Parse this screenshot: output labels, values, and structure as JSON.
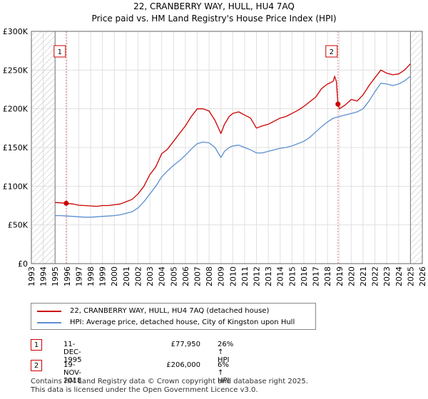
{
  "title_line1": "22, CRANBERRY WAY, HULL, HU4 7AQ",
  "title_line2": "Price paid vs. HM Land Registry's House Price Index (HPI)",
  "colors": {
    "property": "#cc0000",
    "hpi": "#5b8fd0",
    "marker": "#cc0000",
    "shade": "#e8e8e8",
    "grid": "#e0e0e0"
  },
  "chart_data": {
    "type": "line",
    "title": "Price paid vs. HM Land Registry's House Price Index (HPI)",
    "xlabel": "",
    "ylabel": "",
    "xlim": [
      1993,
      2026
    ],
    "ylim": [
      0,
      300000
    ],
    "x_ticks": [
      1993,
      1994,
      1995,
      1996,
      1997,
      1998,
      1999,
      2000,
      2001,
      2002,
      2003,
      2004,
      2005,
      2006,
      2007,
      2008,
      2009,
      2010,
      2011,
      2012,
      2013,
      2014,
      2015,
      2016,
      2017,
      2018,
      2019,
      2020,
      2021,
      2022,
      2023,
      2024,
      2025,
      2026
    ],
    "y_ticks": [
      0,
      50000,
      100000,
      150000,
      200000,
      250000,
      300000
    ],
    "y_tick_labels": [
      "£0",
      "£50K",
      "£100K",
      "£150K",
      "£200K",
      "£250K",
      "£300K"
    ],
    "shaded_before": 1995.0,
    "shaded_after": 2025.0,
    "series": [
      {
        "name": "22, CRANBERRY WAY, HULL, HU4 7AQ (detached house)",
        "color": "#cc0000",
        "x": [
          1995.0,
          1995.5,
          1995.94,
          1996.5,
          1997.0,
          1997.5,
          1998.0,
          1998.5,
          1999.0,
          1999.5,
          2000.0,
          2000.5,
          2001.0,
          2001.5,
          2002.0,
          2002.5,
          2003.0,
          2003.5,
          2004.0,
          2004.5,
          2005.0,
          2005.5,
          2006.0,
          2006.5,
          2007.0,
          2007.5,
          2008.0,
          2008.5,
          2009.0,
          2009.3,
          2009.7,
          2010.0,
          2010.5,
          2011.0,
          2011.5,
          2012.0,
          2012.5,
          2013.0,
          2013.5,
          2014.0,
          2014.5,
          2015.0,
          2015.5,
          2016.0,
          2016.5,
          2017.0,
          2017.5,
          2018.0,
          2018.3,
          2018.5,
          2018.6,
          2018.75,
          2018.88,
          2019.0,
          2019.5,
          2020.0,
          2020.5,
          2021.0,
          2021.5,
          2022.0,
          2022.5,
          2023.0,
          2023.5,
          2024.0,
          2024.5,
          2025.0
        ],
        "y": [
          79000,
          78500,
          77950,
          77000,
          75500,
          75000,
          74500,
          74000,
          75000,
          75000,
          76000,
          77000,
          80000,
          83000,
          90000,
          100000,
          115000,
          125000,
          142000,
          148000,
          158000,
          168000,
          178000,
          190000,
          200000,
          200000,
          197000,
          185000,
          168000,
          180000,
          190000,
          194000,
          196000,
          192000,
          188000,
          175000,
          178000,
          180000,
          184000,
          188000,
          190000,
          194000,
          198000,
          203000,
          209000,
          215000,
          226000,
          232000,
          234000,
          236000,
          242000,
          235000,
          206000,
          200000,
          205000,
          212000,
          210000,
          218000,
          230000,
          240000,
          250000,
          246000,
          244000,
          245000,
          250000,
          258000
        ]
      },
      {
        "name": "HPI: Average price, detached house, City of Kingston upon Hull",
        "color": "#5b8fd0",
        "x": [
          1995.0,
          1995.5,
          1996.0,
          1996.5,
          1997.0,
          1997.5,
          1998.0,
          1998.5,
          1999.0,
          1999.5,
          2000.0,
          2000.5,
          2001.0,
          2001.5,
          2002.0,
          2002.5,
          2003.0,
          2003.5,
          2004.0,
          2004.5,
          2005.0,
          2005.5,
          2006.0,
          2006.5,
          2007.0,
          2007.5,
          2008.0,
          2008.5,
          2009.0,
          2009.3,
          2009.7,
          2010.0,
          2010.5,
          2011.0,
          2011.5,
          2012.0,
          2012.5,
          2013.0,
          2013.5,
          2014.0,
          2014.5,
          2015.0,
          2015.5,
          2016.0,
          2016.5,
          2017.0,
          2017.5,
          2018.0,
          2018.5,
          2019.0,
          2019.5,
          2020.0,
          2020.5,
          2021.0,
          2021.5,
          2022.0,
          2022.5,
          2023.0,
          2023.5,
          2024.0,
          2024.5,
          2025.0
        ],
        "y": [
          62000,
          62000,
          61500,
          61000,
          60500,
          60000,
          60000,
          60500,
          61000,
          61500,
          62000,
          63000,
          65000,
          67000,
          72000,
          80000,
          90000,
          100000,
          112000,
          120000,
          127000,
          133000,
          140000,
          148000,
          155000,
          157000,
          156000,
          150000,
          137000,
          145000,
          150000,
          152000,
          153000,
          150000,
          147000,
          143000,
          143000,
          145000,
          147000,
          149000,
          150000,
          152000,
          155000,
          158000,
          163000,
          170000,
          177000,
          183000,
          188000,
          190000,
          192000,
          194000,
          196000,
          200000,
          210000,
          222000,
          233000,
          232000,
          230000,
          232000,
          236000,
          242000
        ]
      }
    ],
    "sales": [
      {
        "marker": "1",
        "x": 1995.94,
        "y": 77950
      },
      {
        "marker": "2",
        "x": 2018.88,
        "y": 206000
      }
    ]
  },
  "legend": {
    "property_label": "22, CRANBERRY WAY, HULL, HU4 7AQ (detached house)",
    "hpi_label": "HPI: Average price, detached house, City of Kingston upon Hull"
  },
  "sales_table": [
    {
      "marker": "1",
      "date": "11-DEC-1995",
      "price": "£77,950",
      "hpi_change": "26% ↑ HPI"
    },
    {
      "marker": "2",
      "date": "19-NOV-2018",
      "price": "£206,000",
      "hpi_change": "6% ↑ HPI"
    }
  ],
  "footer": {
    "line1": "Contains HM Land Registry data © Crown copyright and database right 2025.",
    "line2": "This data is licensed under the Open Government Licence v3.0."
  }
}
